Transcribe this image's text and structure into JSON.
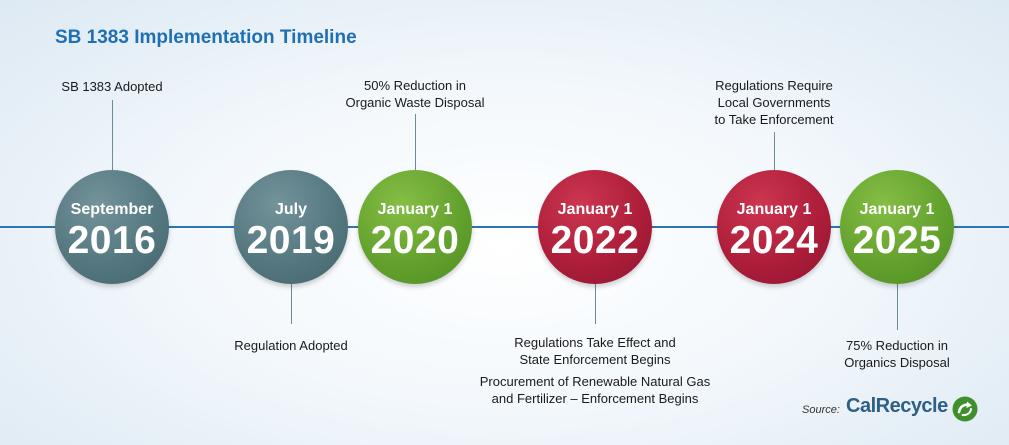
{
  "title": "SB 1383 Implementation Timeline",
  "milestones": [
    {
      "month": "September",
      "year": "2016",
      "color": "#557880",
      "label_position": "above",
      "label_lines": [
        "SB 1383 Adopted"
      ]
    },
    {
      "month": "July",
      "year": "2019",
      "color": "#557880",
      "label_position": "below",
      "label_lines": [
        "Regulation Adopted"
      ]
    },
    {
      "month": "January 1",
      "year": "2020",
      "color": "#64a22e",
      "label_position": "above",
      "label_lines": [
        "50% Reduction in",
        "Organic Waste Disposal"
      ]
    },
    {
      "month": "January 1",
      "year": "2022",
      "color": "#ae1e3a",
      "label_position": "below",
      "label_lines": [
        "Regulations Take Effect and",
        "State Enforcement Begins"
      ],
      "extra_label_lines": [
        "Procurement of Renewable Natural Gas",
        "and Fertilizer – Enforcement Begins"
      ]
    },
    {
      "month": "January 1",
      "year": "2024",
      "color": "#ae1e3a",
      "label_position": "above",
      "label_lines": [
        "Regulations Require",
        "Local Governments",
        "to Take Enforcement"
      ]
    },
    {
      "month": "January 1",
      "year": "2025",
      "color": "#64a22e",
      "label_position": "below",
      "label_lines": [
        "75% Reduction in",
        "Organics Disposal"
      ]
    }
  ],
  "source": {
    "label": "Source:",
    "brand": "CalRecycle",
    "brand_color": "#2e5f86",
    "icon": "recycle-arrow-icon"
  }
}
